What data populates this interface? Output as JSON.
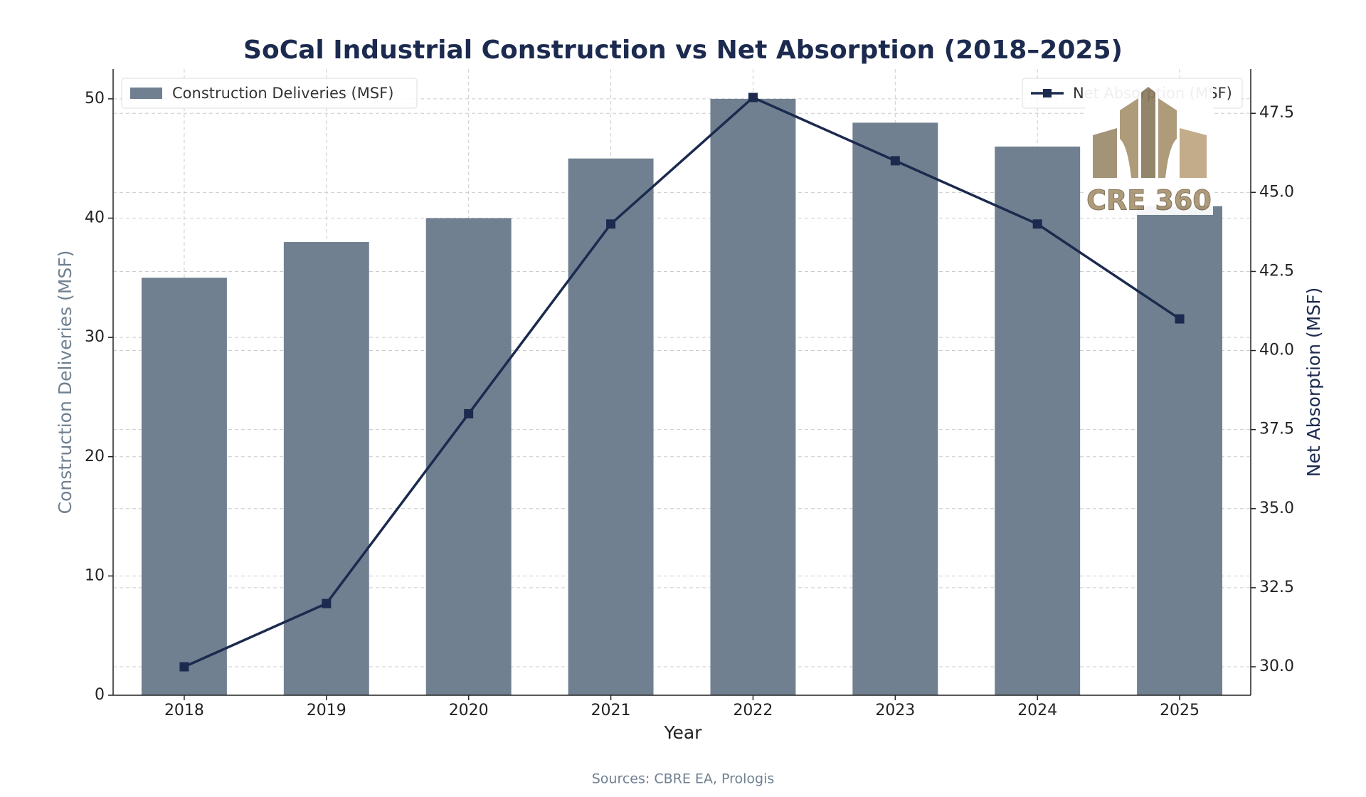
{
  "chart_data": {
    "type": "bar_line",
    "title": "SoCal Industrial Construction vs Net Absorption (2018–2025)",
    "x_label": "Year",
    "y_label": "Construction Deliveries (MSF)",
    "y2_label": "Net Absorption (MSF)",
    "source": "Sources: CBRE EA, Prologis",
    "logo_text": "CRE 360",
    "categories": [
      "2018",
      "2019",
      "2020",
      "2021",
      "2022",
      "2023",
      "2024",
      "2025"
    ],
    "series": [
      {
        "name": "Construction Deliveries (MSF)",
        "type": "bar",
        "color": "#708090",
        "values": [
          35,
          38,
          40,
          45,
          50,
          48,
          46,
          41
        ]
      },
      {
        "name": "Net Absorption (MSF)",
        "type": "line",
        "axis": "y2",
        "color": "#1b2a4e",
        "values": [
          30,
          32,
          38,
          44,
          48,
          46,
          44,
          41
        ]
      }
    ],
    "ylim": [
      0,
      52.5
    ],
    "yticks": [
      0,
      10,
      20,
      30,
      40,
      50
    ],
    "y2lim": [
      29.1,
      48.9
    ],
    "y2ticks": [
      {
        "value": 30,
        "label": "30.0"
      },
      {
        "value": 32.5,
        "label": "32.5"
      },
      {
        "value": 35,
        "label": "35.0"
      },
      {
        "value": 37.5,
        "label": "37.5"
      },
      {
        "value": 40,
        "label": "40.0"
      },
      {
        "value": 42.5,
        "label": "42.5"
      },
      {
        "value": 45,
        "label": "45.0"
      },
      {
        "value": 47.5,
        "label": "47.5"
      }
    ],
    "grid": true,
    "legend": "upper left",
    "legend2": "upper right"
  }
}
